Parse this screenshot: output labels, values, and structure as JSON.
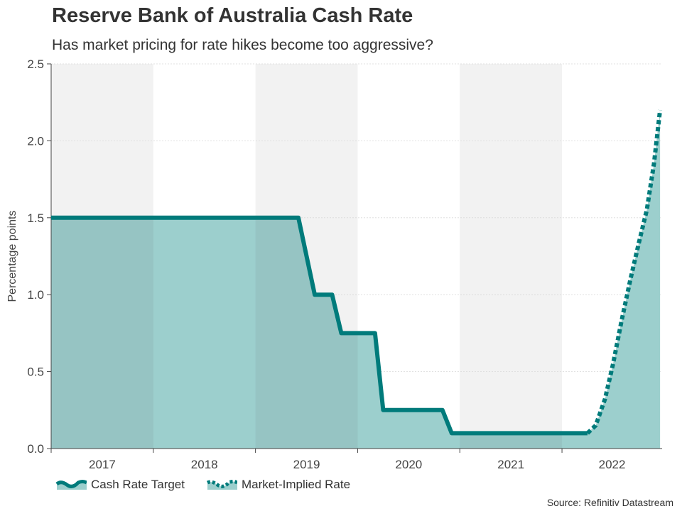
{
  "title": "Reserve Bank of Australia Cash Rate",
  "subtitle": "Has market pricing for rate hikes become too aggressive?",
  "source": "Source: Refinitiv Datastream",
  "colors": {
    "line": "#007b7b",
    "area": "#9ccfcd",
    "area_shaded": "#96c4c3",
    "band": "#f2f2f2",
    "grid": "#d9d9d9"
  },
  "chart_data": {
    "type": "line",
    "title": "Reserve Bank of Australia Cash Rate",
    "subtitle": "Has market pricing for rate hikes become too aggressive?",
    "xlabel": "",
    "ylabel": "Percentage points",
    "xlim": [
      2017.0,
      2022.98
    ],
    "ylim": [
      0,
      2.5
    ],
    "yticks": [
      "0.0",
      "0.5",
      "1.0",
      "1.5",
      "2.0",
      "2.5"
    ],
    "xtick_labels": [
      "2017",
      "2018",
      "2019",
      "2020",
      "2021",
      "2022"
    ],
    "alternating_year_bands": [
      2017,
      2019,
      2021
    ],
    "grid": true,
    "legend_position": "bottom-left",
    "series": [
      {
        "name": "Cash Rate Target",
        "style": "solid",
        "points": [
          [
            2017.0,
            1.5
          ],
          [
            2019.42,
            1.5
          ],
          [
            2019.58,
            1.0
          ],
          [
            2019.75,
            1.0
          ],
          [
            2019.84,
            0.75
          ],
          [
            2020.17,
            0.75
          ],
          [
            2020.25,
            0.25
          ],
          [
            2020.83,
            0.25
          ],
          [
            2020.92,
            0.1
          ],
          [
            2022.25,
            0.1
          ]
        ]
      },
      {
        "name": "Market-Implied Rate",
        "style": "dotted",
        "points": [
          [
            2022.25,
            0.1
          ],
          [
            2022.33,
            0.15
          ],
          [
            2022.42,
            0.32
          ],
          [
            2022.5,
            0.55
          ],
          [
            2022.58,
            0.82
          ],
          [
            2022.67,
            1.1
          ],
          [
            2022.75,
            1.33
          ],
          [
            2022.83,
            1.55
          ],
          [
            2022.9,
            1.85
          ],
          [
            2022.96,
            2.2
          ]
        ]
      }
    ]
  }
}
